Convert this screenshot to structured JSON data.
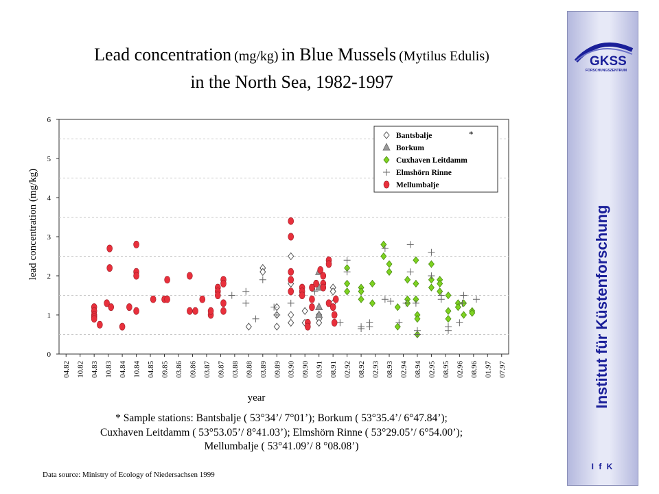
{
  "title": {
    "line1_a": "Lead concentration",
    "line1_b": "(mg/kg)",
    "line1_c": "in Blue Mussels",
    "line1_d": "(Mytilus Edulis)",
    "line2": "in the North Sea, 1982-1997"
  },
  "footnote": {
    "line1": "* Sample stations: Bantsbalje ( 53°34’/ 7°01’); Borkum ( 53°35.4’/ 6°47.84’);",
    "line2": "Cuxhaven Leitdamm ( 53°53.05’/ 8°41.03’); Elmshörn Rinne ( 53°29.05’/ 6°54.00’);",
    "line3": "Mellumbalje ( 53°41.09’/ 8 °08.08’)"
  },
  "source": "Data source: Ministry of Ecology of Niedersachsen 1999",
  "sidebar": {
    "logo_text": "GKSS",
    "logo_sub": "FORSCHUNGSZENTRUM",
    "institute": "Institut für Küstenforschung",
    "abbr": "I f K"
  },
  "colors": {
    "red": "#e8303c",
    "green": "#7ed321",
    "gray": "#999999",
    "brand": "#1a1f99"
  },
  "chart_data": {
    "type": "scatter",
    "xlabel": "year",
    "ylabel": "lead concentration (mg/kg)",
    "ylim": [
      0,
      6
    ],
    "yticks": [
      "0",
      "1",
      "2",
      "3",
      "4",
      "5",
      "6"
    ],
    "grid": "horizontal dashed",
    "legend_position": "top-right",
    "legend_star": "*",
    "categories": [
      "04.82",
      "10.82",
      "04.83",
      "10.83",
      "04.84",
      "10.84",
      "04.85",
      "09.85",
      "03.86",
      "09.86",
      "03.87",
      "09.87",
      "03.88",
      "09.88",
      "03.89",
      "09.89",
      "03.90",
      "09.90",
      "03.91",
      "08.91",
      "02.92",
      "08.92",
      "02.93",
      "08.93",
      "02.94",
      "08.94",
      "02.95",
      "08.95",
      "02.96",
      "08.96",
      "01.97",
      "07.97"
    ],
    "series": [
      {
        "name": "Bantsbalje",
        "marker": "diamond-open",
        "points": [
          [
            14,
            2.2
          ],
          [
            14,
            2.1
          ],
          [
            13,
            0.7
          ],
          [
            15,
            1.2
          ],
          [
            15,
            1.0
          ],
          [
            15,
            0.7
          ],
          [
            16,
            2.5
          ],
          [
            16,
            1.8
          ],
          [
            16,
            1.0
          ],
          [
            16,
            0.8
          ],
          [
            17,
            1.1
          ],
          [
            17,
            0.8
          ],
          [
            18,
            1.0
          ],
          [
            18,
            0.9
          ],
          [
            18,
            0.8
          ],
          [
            19,
            1.7
          ],
          [
            19,
            1.6
          ],
          [
            19,
            1.3
          ]
        ]
      },
      {
        "name": "Borkum",
        "marker": "triangle",
        "points": [
          [
            18,
            2.1
          ],
          [
            18,
            1.7
          ],
          [
            18,
            1.2
          ],
          [
            18,
            1.0
          ]
        ]
      },
      {
        "name": "Cuxhaven Leitdamm",
        "marker": "diamond-green",
        "points": [
          [
            20,
            2.2
          ],
          [
            20,
            1.8
          ],
          [
            20,
            1.6
          ],
          [
            21,
            1.7
          ],
          [
            21,
            1.6
          ],
          [
            21,
            1.4
          ],
          [
            21.8,
            1.8
          ],
          [
            21.8,
            1.3
          ],
          [
            22.6,
            2.8
          ],
          [
            22.6,
            2.5
          ],
          [
            23,
            2.3
          ],
          [
            23,
            2.1
          ],
          [
            23.6,
            1.2
          ],
          [
            23.6,
            0.7
          ],
          [
            24.3,
            1.9
          ],
          [
            24.3,
            1.4
          ],
          [
            24.3,
            1.3
          ],
          [
            24.9,
            2.4
          ],
          [
            24.9,
            1.8
          ],
          [
            24.9,
            1.4
          ],
          [
            25,
            1.0
          ],
          [
            25,
            0.9
          ],
          [
            25,
            0.5
          ],
          [
            26,
            2.3
          ],
          [
            26,
            1.9
          ],
          [
            26,
            1.7
          ],
          [
            26.6,
            1.9
          ],
          [
            26.6,
            1.8
          ],
          [
            26.6,
            1.6
          ],
          [
            27.2,
            1.5
          ],
          [
            27.2,
            1.1
          ],
          [
            27.2,
            0.9
          ],
          [
            27.9,
            1.3
          ],
          [
            27.9,
            1.2
          ],
          [
            28.3,
            1.3
          ],
          [
            28.3,
            1.0
          ],
          [
            28.9,
            1.1
          ],
          [
            28.9,
            1.05
          ]
        ]
      },
      {
        "name": "Elmshörn Rinne",
        "marker": "plus",
        "points": [
          [
            11.8,
            1.5
          ],
          [
            12.8,
            1.6
          ],
          [
            12.8,
            1.3
          ],
          [
            13.5,
            0.9
          ],
          [
            14,
            1.9
          ],
          [
            14.8,
            1.2
          ],
          [
            15,
            1.0
          ],
          [
            16,
            1.3
          ],
          [
            16.8,
            1.5
          ],
          [
            17.7,
            1.6
          ],
          [
            19.5,
            0.8
          ],
          [
            20,
            2.4
          ],
          [
            20,
            2.1
          ],
          [
            21,
            0.7
          ],
          [
            21,
            0.65
          ],
          [
            21.6,
            0.8
          ],
          [
            21.6,
            0.7
          ],
          [
            22.7,
            2.7
          ],
          [
            22.7,
            1.4
          ],
          [
            23.1,
            1.35
          ],
          [
            23.7,
            0.8
          ],
          [
            24.2,
            1.3
          ],
          [
            24.5,
            2.8
          ],
          [
            24.5,
            2.1
          ],
          [
            24.9,
            1.3
          ],
          [
            25,
            0.5
          ],
          [
            25,
            0.6
          ],
          [
            26,
            2.6
          ],
          [
            26,
            2.0
          ],
          [
            26.7,
            1.5
          ],
          [
            26.7,
            1.4
          ],
          [
            27.2,
            0.7
          ],
          [
            27.2,
            0.6
          ],
          [
            28,
            0.8
          ],
          [
            28.2,
            1.3
          ],
          [
            28.3,
            1.5
          ],
          [
            29.2,
            1.4
          ]
        ]
      },
      {
        "name": "Mellumbalje",
        "marker": "circle-red",
        "points": [
          [
            2,
            1.2
          ],
          [
            2,
            1.1
          ],
          [
            2,
            1.0
          ],
          [
            2,
            0.95
          ],
          [
            2,
            0.9
          ],
          [
            2.4,
            0.75
          ],
          [
            2.9,
            1.3
          ],
          [
            3.1,
            2.7
          ],
          [
            3.1,
            2.2
          ],
          [
            3.2,
            1.2
          ],
          [
            4,
            0.7
          ],
          [
            4.5,
            1.2
          ],
          [
            5,
            2.8
          ],
          [
            5,
            2.1
          ],
          [
            5,
            2.0
          ],
          [
            5,
            1.1
          ],
          [
            6.2,
            1.4
          ],
          [
            7,
            1.4
          ],
          [
            7.2,
            1.4
          ],
          [
            7.2,
            1.9
          ],
          [
            8.8,
            2.0
          ],
          [
            8.8,
            1.1
          ],
          [
            9.2,
            1.1
          ],
          [
            9.7,
            1.4
          ],
          [
            10.3,
            1.0
          ],
          [
            10.3,
            1.1
          ],
          [
            10.8,
            1.7
          ],
          [
            10.8,
            1.6
          ],
          [
            10.8,
            1.5
          ],
          [
            11.2,
            1.9
          ],
          [
            11.2,
            1.8
          ],
          [
            11.2,
            1.3
          ],
          [
            11.2,
            1.1
          ],
          [
            16,
            3.4
          ],
          [
            16,
            3.0
          ],
          [
            16,
            2.1
          ],
          [
            16,
            1.9
          ],
          [
            16,
            1.6
          ],
          [
            16.8,
            1.7
          ],
          [
            16.8,
            1.6
          ],
          [
            16.8,
            1.5
          ],
          [
            17.2,
            0.8
          ],
          [
            17.2,
            0.7
          ],
          [
            17.5,
            1.7
          ],
          [
            17.5,
            1.4
          ],
          [
            17.5,
            1.2
          ],
          [
            17.8,
            1.8
          ],
          [
            18.1,
            2.15
          ],
          [
            18.3,
            2.0
          ],
          [
            18.3,
            1.8
          ],
          [
            18.3,
            1.7
          ],
          [
            18.7,
            2.4
          ],
          [
            18.7,
            2.3
          ],
          [
            18.7,
            1.3
          ],
          [
            19,
            1.2
          ],
          [
            19.1,
            1.0
          ],
          [
            19.1,
            0.8
          ],
          [
            19.2,
            1.4
          ]
        ]
      }
    ]
  }
}
